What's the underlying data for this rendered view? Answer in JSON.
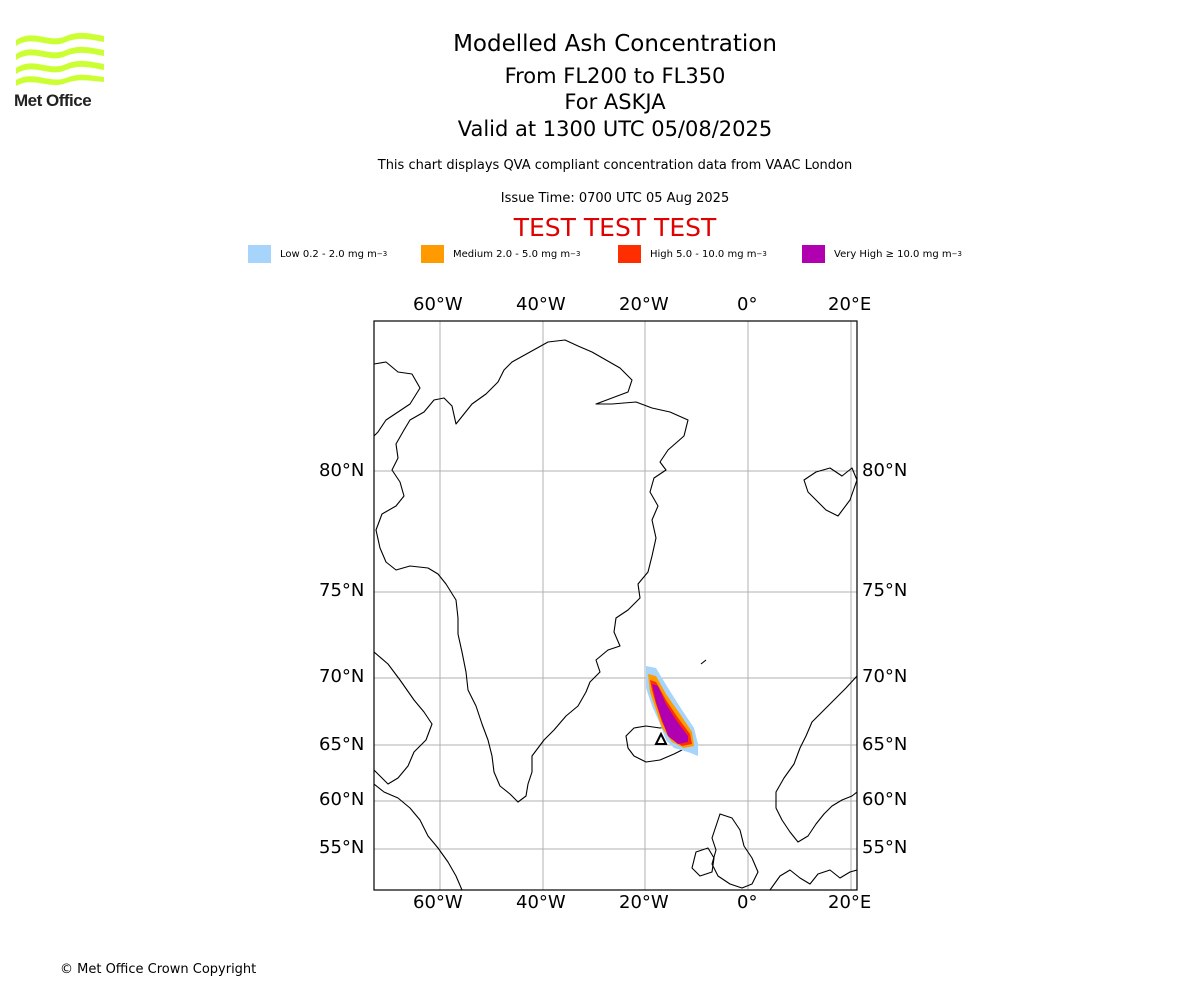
{
  "logo": {
    "text": "Met Office",
    "icon": "met-office-wave-logo",
    "color": "#ccff33"
  },
  "titles": {
    "main": "Modelled Ash Concentration",
    "levels": "From FL200 to FL350",
    "volcano": "For ASKJA",
    "valid": "Valid at 1300 UTC 05/08/2025"
  },
  "subtitle": "This chart displays QVA compliant concentration data from VAAC London",
  "issue_time": "Issue Time: 0700 UTC 05 Aug 2025",
  "test_banner": "TEST TEST TEST",
  "legend": [
    {
      "label": "Low 0.2 - 2.0 mg m",
      "sup": "−3",
      "color": "#a6d4fb"
    },
    {
      "label": "Medium 2.0 - 5.0 mg m",
      "sup": "−3",
      "color": "#ff9a00"
    },
    {
      "label": "High 5.0 - 10.0 mg m",
      "sup": "−3",
      "color": "#ff2e00"
    },
    {
      "label": "Very High  ≥  10.0 mg m",
      "sup": "−3",
      "color": "#b000b0"
    }
  ],
  "map": {
    "lon_ticks": [
      "60°W",
      "40°W",
      "20°W",
      "0°",
      "20°E"
    ],
    "lat_ticks": [
      "80°N",
      "75°N",
      "70°N",
      "65°N",
      "60°N",
      "55°N"
    ],
    "volcano_marker": "triangle-icon"
  },
  "copyright": "© Met Office Crown Copyright"
}
